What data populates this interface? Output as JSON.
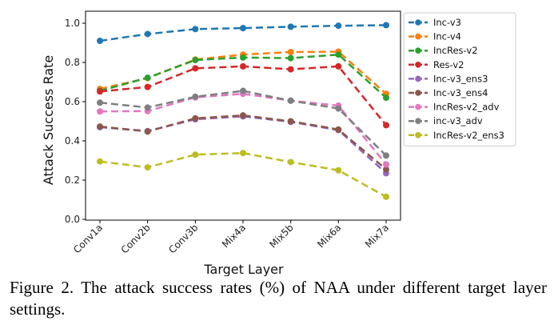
{
  "chart_data": {
    "type": "line",
    "title": "",
    "xlabel": "Target Layer",
    "ylabel": "Attack Success Rate",
    "categories": [
      "Conv1a",
      "Conv2b",
      "Conv3b",
      "Mix4a",
      "Mix5b",
      "Mix6a",
      "Mix7a"
    ],
    "ylim": [
      0.0,
      1.0
    ],
    "yticks": [
      0.0,
      0.2,
      0.4,
      0.6,
      0.8,
      1.0
    ],
    "ytick_labels": [
      "0.0",
      "0.2",
      "0.4",
      "0.6",
      "0.8",
      "1.0"
    ],
    "legend_position": "outside-right",
    "grid": false,
    "series": [
      {
        "name": "Inc-v3",
        "color": "#1f77b4",
        "values": [
          0.91,
          0.945,
          0.97,
          0.975,
          0.982,
          0.987,
          0.99
        ]
      },
      {
        "name": "Inc-v4",
        "color": "#ff7f0e",
        "values": [
          0.665,
          0.72,
          0.815,
          0.84,
          0.853,
          0.855,
          0.64
        ]
      },
      {
        "name": "IncRes-v2",
        "color": "#2ca02c",
        "values": [
          0.655,
          0.722,
          0.812,
          0.825,
          0.822,
          0.84,
          0.62
        ]
      },
      {
        "name": "Res-v2",
        "color": "#d62728",
        "values": [
          0.652,
          0.675,
          0.77,
          0.78,
          0.765,
          0.78,
          0.48
        ]
      },
      {
        "name": "Inc-v3_ens3",
        "color": "#9467bd",
        "values": [
          0.47,
          0.45,
          0.51,
          0.525,
          0.497,
          0.455,
          0.235
        ]
      },
      {
        "name": "Inc-v3_ens4",
        "color": "#8c564b",
        "values": [
          0.473,
          0.448,
          0.515,
          0.53,
          0.5,
          0.458,
          0.255
        ]
      },
      {
        "name": "IncRes-v2_adv",
        "color": "#e377c2",
        "values": [
          0.55,
          0.552,
          0.622,
          0.64,
          0.605,
          0.58,
          0.28
        ]
      },
      {
        "name": "inc-v3_adv",
        "color": "#7f7f7f",
        "values": [
          0.595,
          0.57,
          0.625,
          0.655,
          0.605,
          0.565,
          0.325
        ]
      },
      {
        "name": "IncRes-v2_ens3",
        "color": "#bcbd22",
        "values": [
          0.295,
          0.265,
          0.33,
          0.338,
          0.292,
          0.25,
          0.115
        ]
      }
    ]
  },
  "caption": "Figure 2.  The attack success rates (%) of NAA under different target layer settings."
}
